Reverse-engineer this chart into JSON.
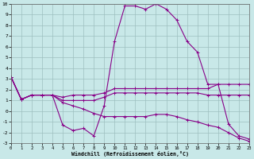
{
  "xlabel": "Windchill (Refroidissement éolien,°C)",
  "background_color": "#c8e8e8",
  "grid_color": "#9dbfbf",
  "line_color": "#880088",
  "xlim": [
    0,
    23
  ],
  "ylim": [
    -3,
    10
  ],
  "xticks": [
    0,
    1,
    2,
    3,
    4,
    5,
    6,
    7,
    8,
    9,
    10,
    11,
    12,
    13,
    14,
    15,
    16,
    17,
    18,
    19,
    20,
    21,
    22,
    23
  ],
  "yticks": [
    -3,
    -2,
    -1,
    0,
    1,
    2,
    3,
    4,
    5,
    6,
    7,
    8,
    9,
    10
  ],
  "series1_x": [
    0,
    1,
    2,
    3,
    4,
    5,
    6,
    7,
    8,
    9,
    10,
    11,
    12,
    13,
    14,
    15,
    16,
    17,
    18,
    19,
    20,
    21,
    22,
    23
  ],
  "series1_y": [
    3.2,
    1.1,
    1.5,
    1.5,
    1.5,
    -1.3,
    -1.8,
    -1.6,
    -2.3,
    0.5,
    6.5,
    9.8,
    9.8,
    9.5,
    10.0,
    9.5,
    8.5,
    6.5,
    5.5,
    2.5,
    2.5,
    -1.2,
    -2.3,
    -2.6
  ],
  "series2_x": [
    0,
    1,
    2,
    3,
    4,
    5,
    6,
    7,
    8,
    9,
    10,
    11,
    12,
    13,
    14,
    15,
    16,
    17,
    18,
    19,
    20,
    21,
    22,
    23
  ],
  "series2_y": [
    3.2,
    1.1,
    1.5,
    1.5,
    1.5,
    1.3,
    1.5,
    1.5,
    1.5,
    1.7,
    2.1,
    2.1,
    2.1,
    2.1,
    2.1,
    2.1,
    2.1,
    2.1,
    2.1,
    2.1,
    2.5,
    2.5,
    2.5,
    2.5
  ],
  "series3_x": [
    0,
    1,
    2,
    3,
    4,
    5,
    6,
    7,
    8,
    9,
    10,
    11,
    12,
    13,
    14,
    15,
    16,
    17,
    18,
    19,
    20,
    21,
    22,
    23
  ],
  "series3_y": [
    3.2,
    1.1,
    1.5,
    1.5,
    1.5,
    1.0,
    1.0,
    1.0,
    1.0,
    1.3,
    1.7,
    1.7,
    1.7,
    1.7,
    1.7,
    1.7,
    1.7,
    1.7,
    1.7,
    1.5,
    1.5,
    1.5,
    1.5,
    1.5
  ],
  "series4_x": [
    0,
    1,
    2,
    3,
    4,
    5,
    6,
    7,
    8,
    9,
    10,
    11,
    12,
    13,
    14,
    15,
    16,
    17,
    18,
    19,
    20,
    21,
    22,
    23
  ],
  "series4_y": [
    3.2,
    1.1,
    1.5,
    1.5,
    1.5,
    0.8,
    0.5,
    0.2,
    -0.2,
    -0.5,
    -0.5,
    -0.5,
    -0.5,
    -0.5,
    -0.3,
    -0.3,
    -0.5,
    -0.8,
    -1.0,
    -1.3,
    -1.5,
    -2.0,
    -2.5,
    -2.8
  ]
}
